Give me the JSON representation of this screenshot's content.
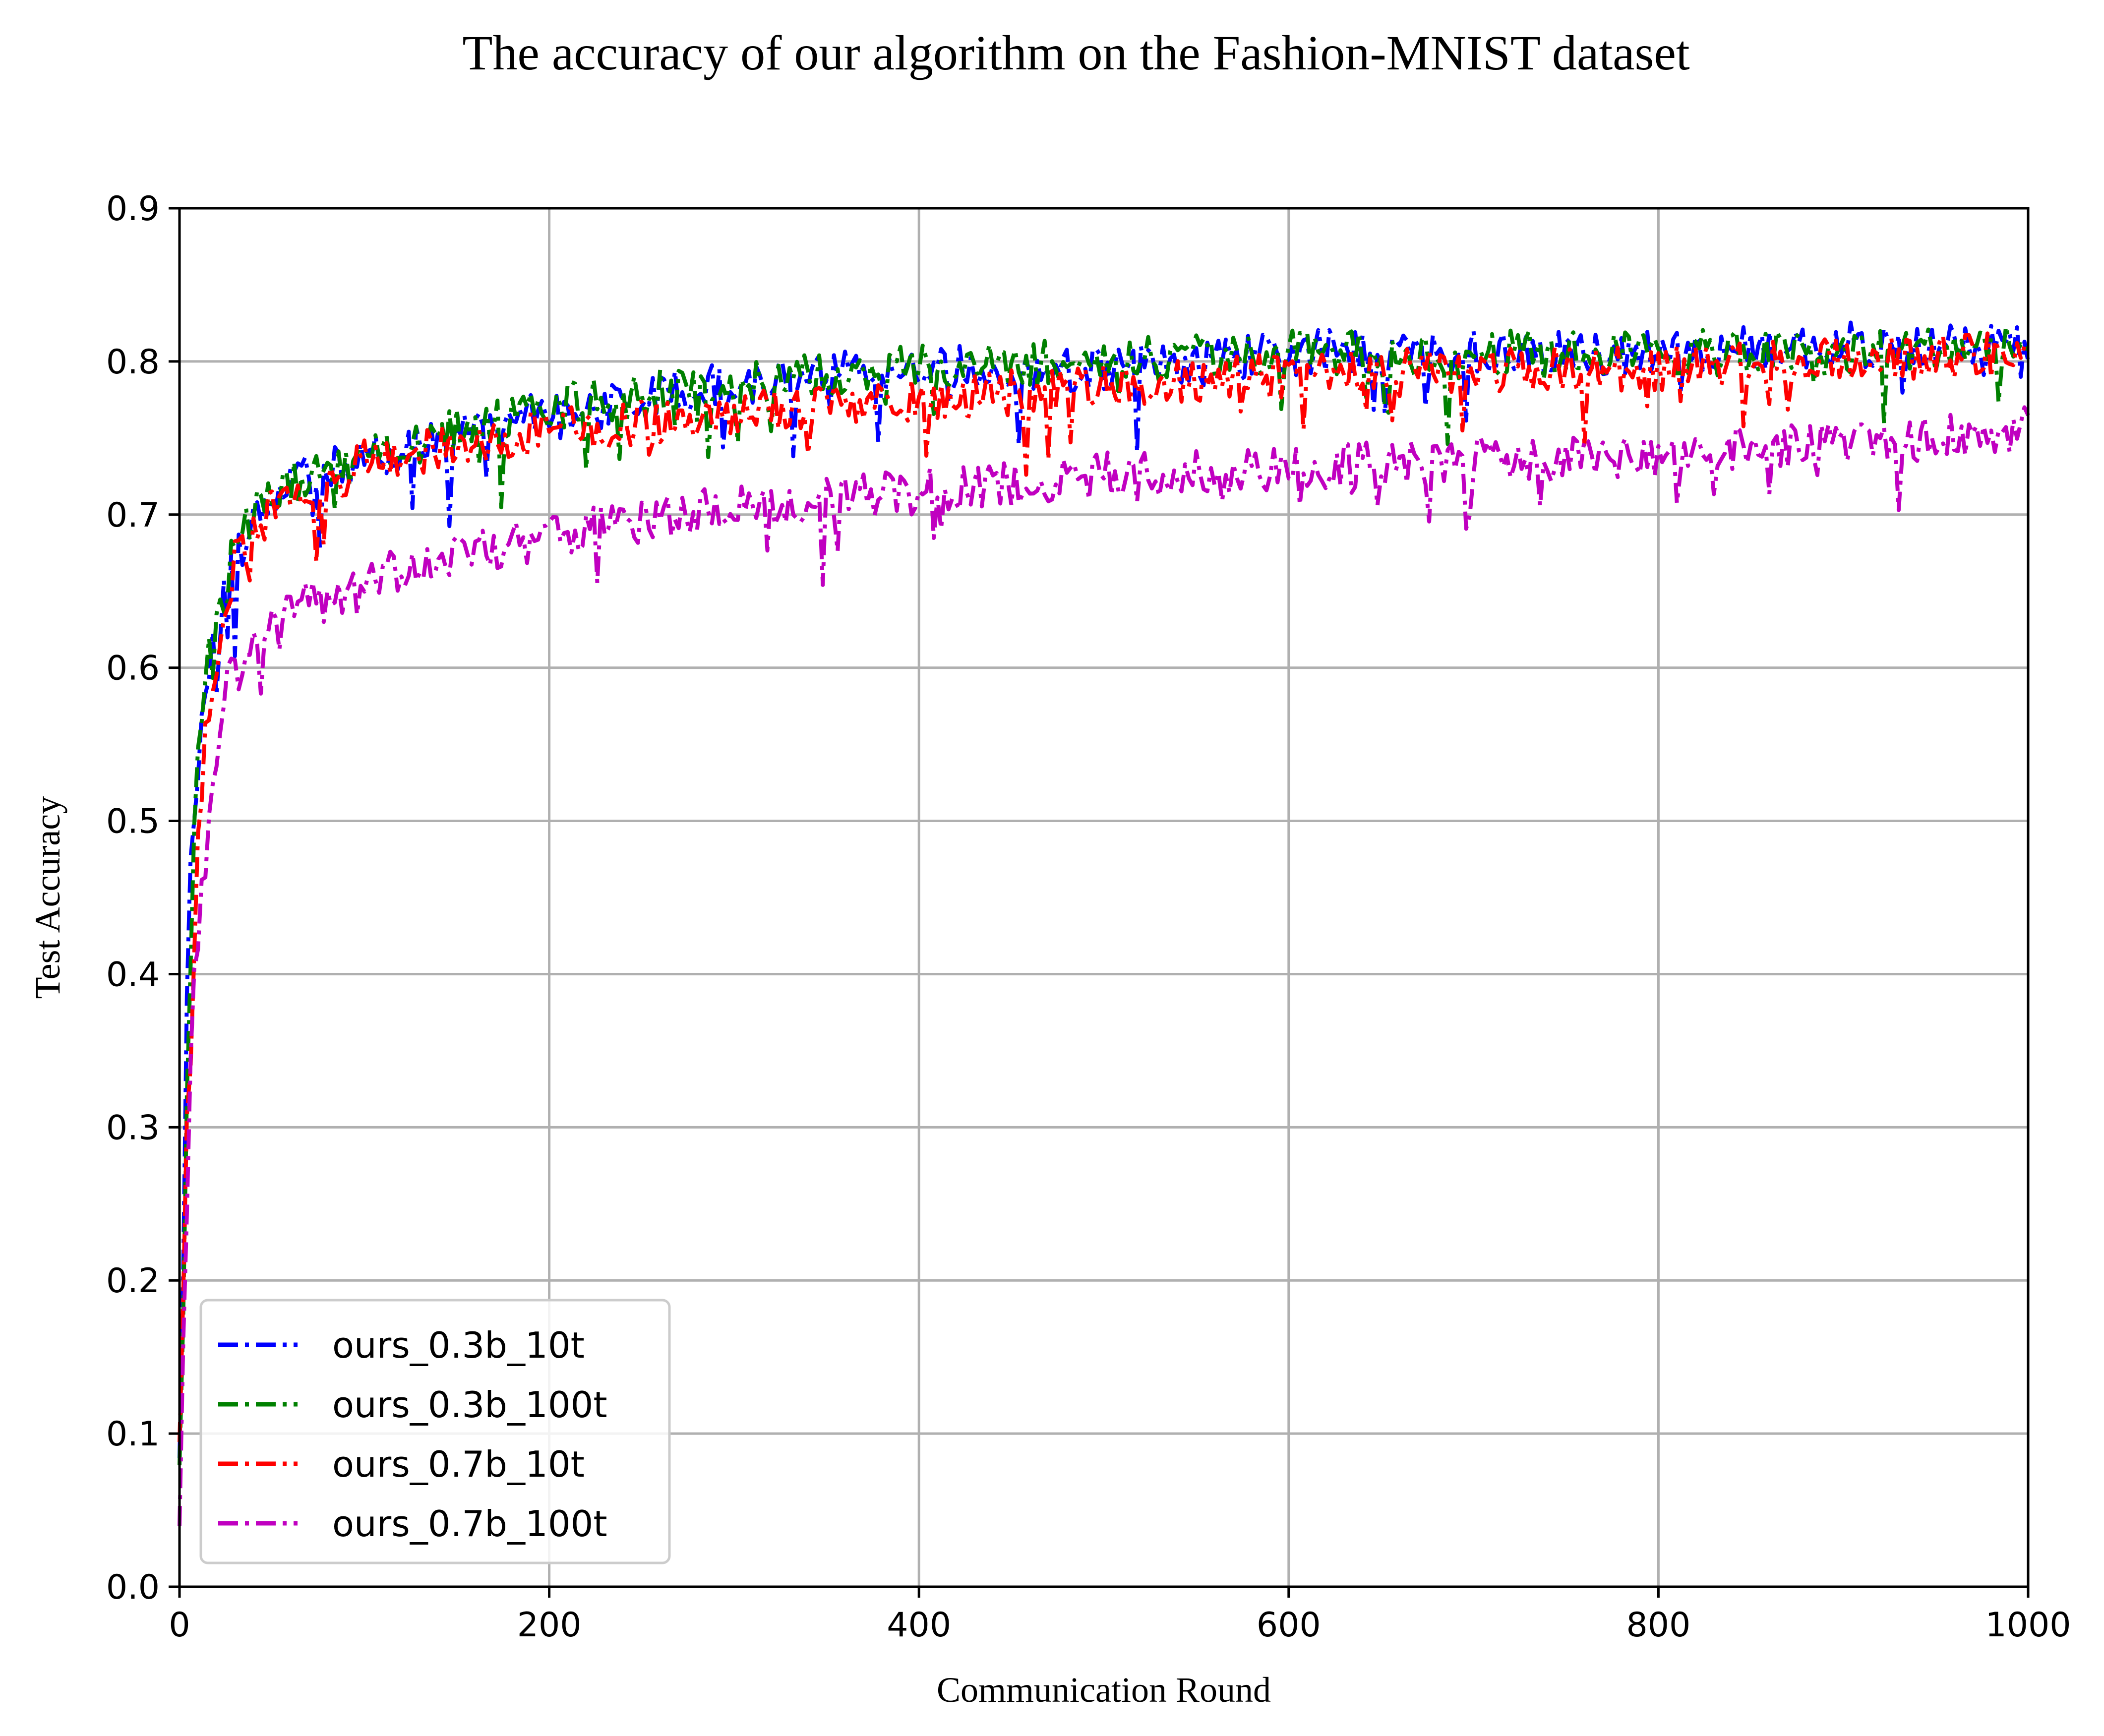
{
  "chart_data": {
    "type": "line",
    "title": "The accuracy of our algorithm on the Fashion-MNIST dataset",
    "xlabel": "Communication Round",
    "ylabel": "Test Accuracy",
    "xlim": [
      0,
      1000
    ],
    "ylim": [
      0.0,
      0.9
    ],
    "xticks": [
      "0",
      "200",
      "400",
      "600",
      "800",
      "1000"
    ],
    "yticks": [
      "0.0",
      "0.1",
      "0.2",
      "0.3",
      "0.4",
      "0.5",
      "0.6",
      "0.7",
      "0.8",
      "0.9"
    ],
    "grid": true,
    "legend_position": "bottom-left",
    "x": [
      0,
      5,
      10,
      20,
      30,
      50,
      75,
      100,
      150,
      200,
      300,
      400,
      500,
      600,
      700,
      800,
      900,
      1000
    ],
    "series": [
      {
        "name": "ours_0.3b_10t",
        "color": "#0000ff",
        "values": [
          0.08,
          0.45,
          0.58,
          0.64,
          0.68,
          0.72,
          0.73,
          0.74,
          0.76,
          0.77,
          0.79,
          0.8,
          0.8,
          0.81,
          0.81,
          0.81,
          0.815,
          0.815
        ]
      },
      {
        "name": "ours_0.3b_100t",
        "color": "#008000",
        "values": [
          0.08,
          0.38,
          0.56,
          0.64,
          0.69,
          0.72,
          0.73,
          0.74,
          0.76,
          0.775,
          0.79,
          0.8,
          0.805,
          0.81,
          0.81,
          0.81,
          0.81,
          0.815
        ]
      },
      {
        "name": "ours_0.7b_10t",
        "color": "#ff0000",
        "values": [
          0.1,
          0.34,
          0.5,
          0.62,
          0.67,
          0.71,
          0.72,
          0.74,
          0.75,
          0.76,
          0.77,
          0.78,
          0.79,
          0.795,
          0.8,
          0.8,
          0.805,
          0.81
        ]
      },
      {
        "name": "ours_0.7b_100t",
        "color": "#c000c0",
        "values": [
          0.05,
          0.32,
          0.44,
          0.56,
          0.6,
          0.64,
          0.65,
          0.66,
          0.68,
          0.69,
          0.71,
          0.72,
          0.73,
          0.735,
          0.74,
          0.745,
          0.75,
          0.76
        ]
      }
    ]
  }
}
